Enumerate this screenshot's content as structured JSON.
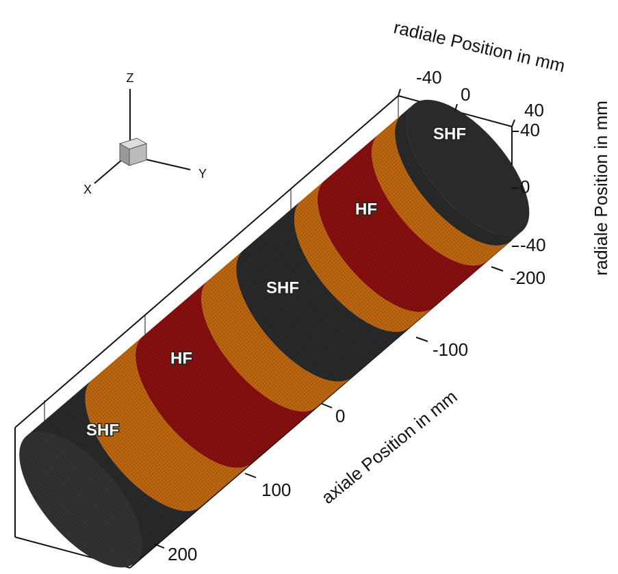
{
  "orientation_axes": {
    "z": "Z",
    "y": "Y",
    "x": "X"
  },
  "axes": {
    "radial_top": {
      "label": "radiale Position in mm",
      "ticks": [
        -40,
        0,
        40
      ]
    },
    "radial_right": {
      "label": "radiale Position in mm",
      "ticks": [
        40,
        0,
        -40
      ]
    },
    "axial": {
      "label": "axiale Position in mm",
      "ticks": [
        -200,
        -100,
        0,
        100,
        200
      ]
    }
  },
  "regions": [
    "SHF",
    "HF",
    "SHF",
    "HF",
    "SHF"
  ]
}
